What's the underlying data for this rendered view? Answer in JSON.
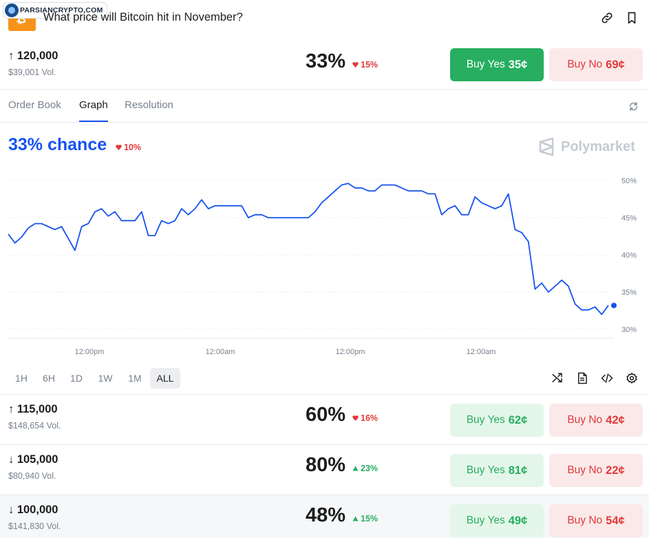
{
  "header": {
    "title": "What price will Bitcoin hit in November?",
    "watermark": "PARSIANCRYPTO.COM",
    "logo_glyph": "₿",
    "icons": [
      "link-icon",
      "bookmark-icon"
    ]
  },
  "outcomes": [
    {
      "strike": "↑ 120,000",
      "volume": "$39,001 Vol.",
      "chance": "33%",
      "delta": "15%",
      "delta_dir": "down",
      "yes_label": "Buy Yes",
      "yes_price": "35¢",
      "no_label": "Buy No",
      "no_price": "69¢"
    },
    {
      "strike": "↑ 115,000",
      "volume": "$148,654 Vol.",
      "chance": "60%",
      "delta": "16%",
      "delta_dir": "down",
      "yes_label": "Buy Yes",
      "yes_price": "62¢",
      "no_label": "Buy No",
      "no_price": "42¢"
    },
    {
      "strike": "↓ 105,000",
      "volume": "$80,940 Vol.",
      "chance": "80%",
      "delta": "23%",
      "delta_dir": "up",
      "yes_label": "Buy Yes",
      "yes_price": "81¢",
      "no_label": "Buy No",
      "no_price": "22¢"
    },
    {
      "strike": "↓ 100,000",
      "volume": "$141,830 Vol.",
      "chance": "48%",
      "delta": "15%",
      "delta_dir": "up",
      "yes_label": "Buy Yes",
      "yes_price": "49¢",
      "no_label": "Buy No",
      "no_price": "54¢"
    }
  ],
  "tabs": [
    "Order Book",
    "Graph",
    "Resolution"
  ],
  "active_tab": "Graph",
  "graph": {
    "chance_label": "33% chance",
    "chance_delta": "10%",
    "brand": "Polymarket"
  },
  "time_ranges": [
    "1H",
    "6H",
    "1D",
    "1W",
    "1M",
    "ALL"
  ],
  "active_range": "ALL",
  "toolbar_icons": [
    "shuffle-icon",
    "document-icon",
    "code-icon",
    "settings-icon"
  ],
  "colors": {
    "accent": "#1652f0",
    "yes": "#27ae60",
    "no": "#e23939",
    "btc": "#f7931a"
  },
  "chart_data": {
    "type": "line",
    "title": "",
    "xlabel": "",
    "ylabel": "",
    "y_ticks": [
      "50%",
      "45%",
      "40%",
      "35%",
      "30%"
    ],
    "x_ticks": [
      "12:00pm",
      "12:00am",
      "12:00pm",
      "12:00am"
    ],
    "ylim": [
      30,
      50
    ],
    "grid": true,
    "series": [
      {
        "values": [
          42.8,
          41.6,
          42.4,
          43.6,
          44.2,
          44.2,
          43.8,
          43.4,
          43.8,
          42.2,
          40.6,
          43.8,
          44.2,
          45.8,
          46.2,
          45.2,
          45.8,
          44.6,
          44.6,
          44.6,
          45.8,
          42.6,
          42.6,
          44.6,
          44.2,
          44.6,
          46.2,
          45.4,
          46.2,
          47.4,
          46.2,
          46.6,
          46.6,
          46.6,
          46.6,
          46.6,
          45.0,
          45.4,
          45.4,
          45.0,
          45.0,
          45.0,
          45.0,
          45.0,
          45.0,
          45.0,
          45.8,
          47.0,
          47.8,
          48.6,
          49.4,
          49.6,
          49.0,
          49.0,
          48.6,
          48.6,
          49.4,
          49.4,
          49.4,
          49.0,
          48.6,
          48.6,
          48.6,
          48.2,
          48.2,
          45.4,
          46.2,
          46.6,
          45.4,
          45.4,
          47.8,
          47.0,
          46.6,
          46.2,
          46.6,
          48.2,
          43.4,
          43.0,
          41.8,
          35.4,
          36.2,
          35.0,
          35.8,
          36.6,
          35.8,
          33.4,
          32.6,
          32.6,
          33.0,
          32.0,
          33.2
        ]
      }
    ]
  }
}
